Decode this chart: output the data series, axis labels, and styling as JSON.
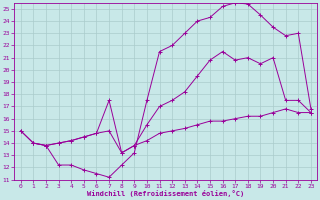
{
  "bg_color": "#c8e8e8",
  "grid_color": "#aacccc",
  "line_color": "#990099",
  "marker": "+",
  "xlabel": "Windchill (Refroidissement éolien,°C)",
  "xlim": [
    -0.5,
    23.5
  ],
  "ylim": [
    11,
    25.5
  ],
  "xticks": [
    0,
    1,
    2,
    3,
    4,
    5,
    6,
    7,
    8,
    9,
    10,
    11,
    12,
    13,
    14,
    15,
    16,
    17,
    18,
    19,
    20,
    21,
    22,
    23
  ],
  "yticks": [
    11,
    12,
    13,
    14,
    15,
    16,
    17,
    18,
    19,
    20,
    21,
    22,
    23,
    24,
    25
  ],
  "curve1_x": [
    0,
    1,
    2,
    3,
    4,
    5,
    6,
    7,
    8,
    9,
    10,
    11,
    12,
    13,
    14,
    15,
    16,
    17,
    18,
    19,
    20,
    21,
    22,
    23
  ],
  "curve1_y": [
    15.0,
    14.0,
    13.8,
    12.2,
    12.2,
    11.8,
    11.5,
    11.2,
    12.2,
    13.2,
    17.5,
    21.5,
    22.0,
    23.0,
    24.0,
    24.3,
    25.2,
    25.5,
    25.4,
    24.5,
    23.5,
    22.8,
    23.0,
    16.8
  ],
  "curve2_x": [
    1,
    2,
    3,
    4,
    5,
    6,
    7,
    8,
    9,
    10,
    11,
    12,
    13,
    14,
    15,
    16,
    17,
    18,
    19,
    20,
    21,
    22,
    23
  ],
  "curve2_y": [
    14.0,
    13.8,
    14.0,
    14.2,
    14.5,
    14.8,
    17.5,
    13.2,
    13.8,
    15.5,
    17.0,
    17.5,
    18.2,
    19.5,
    20.8,
    21.5,
    20.8,
    21.0,
    20.5,
    21.0,
    17.5,
    17.5,
    16.5
  ],
  "curve3_x": [
    0,
    1,
    2,
    3,
    4,
    5,
    6,
    7,
    8,
    9,
    10,
    11,
    12,
    13,
    14,
    15,
    16,
    17,
    18,
    19,
    20,
    21,
    22,
    23
  ],
  "curve3_y": [
    15.0,
    14.0,
    13.8,
    14.0,
    14.2,
    14.5,
    14.8,
    15.0,
    13.2,
    13.8,
    14.2,
    14.8,
    15.0,
    15.2,
    15.5,
    15.8,
    15.8,
    16.0,
    16.2,
    16.2,
    16.5,
    16.8,
    16.5,
    16.5
  ]
}
